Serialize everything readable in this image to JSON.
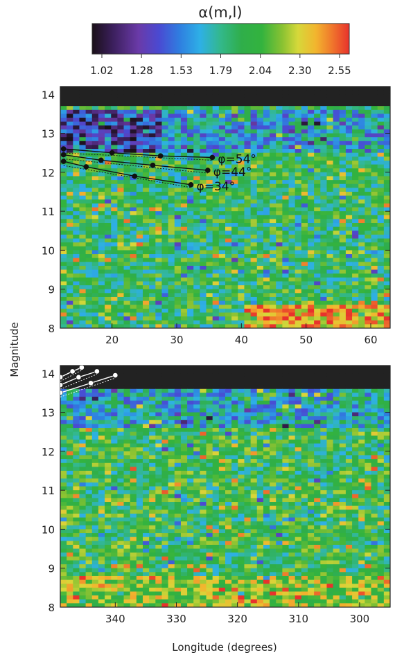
{
  "colorbar": {
    "title": "α(m,l)",
    "ticks": [
      "1.02",
      "1.28",
      "1.53",
      "1.79",
      "2.04",
      "2.30",
      "2.55"
    ],
    "range": [
      1.02,
      2.55
    ]
  },
  "colors": {
    "palette": [
      "#1a1018",
      "#3b1f5c",
      "#6a3aa8",
      "#4a4ad2",
      "#2f7ee0",
      "#2eb0e6",
      "#33b88a",
      "#2fae4a",
      "#33b33e",
      "#8ac232",
      "#d6d83a",
      "#f2b52e",
      "#f07a2c",
      "#e8322c"
    ],
    "over_range": "#222222",
    "track_line": "#111111",
    "bottom_track_line": "#ffffff"
  },
  "ylabel": "Magnitude",
  "xlabel": "Longitude (degrees)",
  "chart_data": [
    {
      "type": "heatmap",
      "panel": "top",
      "xlim": [
        12,
        63
      ],
      "ylim": [
        8,
        14.2
      ],
      "x_ticks": [
        "20",
        "30",
        "40",
        "50",
        "60"
      ],
      "x_tick_values": [
        20,
        30,
        40,
        50,
        60
      ],
      "y_ticks": [
        "8",
        "9",
        "10",
        "11",
        "12",
        "13",
        "14"
      ],
      "y_tick_values": [
        8,
        9,
        10,
        11,
        12,
        13,
        14
      ],
      "regions": [
        {
          "mag_range": [
            13.75,
            14.2
          ],
          "lon_range": [
            12,
            63
          ],
          "value": "above 2.55 / no data (black)"
        },
        {
          "mag_range": [
            12.3,
            13.6
          ],
          "lon_range": [
            12,
            28
          ],
          "value": 1.3
        },
        {
          "mag_range": [
            11.6,
            12.3
          ],
          "lon_range": [
            12,
            30
          ],
          "value": 2.25
        },
        {
          "mag_range": [
            12.5,
            13.6
          ],
          "lon_range": [
            28,
            63
          ],
          "value": 1.6
        },
        {
          "mag_range": [
            8,
            12.5
          ],
          "lon_range": [
            12,
            63
          ],
          "value": 1.85
        },
        {
          "mag_range": [
            8,
            8.6
          ],
          "lon_range": [
            40,
            63
          ],
          "value": 2.3
        }
      ],
      "tracks": [
        {
          "label": "φ=54°",
          "points": [
            [
              12.5,
              12.6
            ],
            [
              20,
              12.5
            ],
            [
              27.5,
              12.42
            ],
            [
              35.5,
              12.38
            ]
          ]
        },
        {
          "label": "φ=44°",
          "points": [
            [
              12.5,
              12.45
            ],
            [
              18.3,
              12.31
            ],
            [
              26.3,
              12.18
            ],
            [
              34.8,
              12.05
            ]
          ]
        },
        {
          "label": "φ=34°",
          "points": [
            [
              12.5,
              12.28
            ],
            [
              16,
              12.14
            ],
            [
              23.5,
              11.9
            ],
            [
              32.2,
              11.68
            ]
          ]
        }
      ]
    },
    {
      "type": "heatmap",
      "panel": "bottom",
      "xlim": [
        349,
        295
      ],
      "ylim": [
        8,
        14.2
      ],
      "x_ticks": [
        "340",
        "330",
        "320",
        "310",
        "300"
      ],
      "x_tick_values": [
        340,
        330,
        320,
        310,
        300
      ],
      "y_ticks": [
        "8",
        "9",
        "10",
        "11",
        "12",
        "13",
        "14"
      ],
      "y_tick_values": [
        8,
        9,
        10,
        11,
        12,
        13,
        14
      ],
      "regions": [
        {
          "mag_range": [
            13.6,
            14.2
          ],
          "lon_range": [
            349,
            295
          ],
          "value": "above 2.55 / no data (black)"
        },
        {
          "mag_range": [
            12.6,
            13.6
          ],
          "lon_range": [
            349,
            295
          ],
          "value": 1.65
        },
        {
          "mag_range": [
            8,
            12.6
          ],
          "lon_range": [
            349,
            295
          ],
          "value": 1.88
        },
        {
          "mag_range": [
            8,
            8.8
          ],
          "lon_range": [
            349,
            295
          ],
          "value": 2.1
        }
      ],
      "tracks": [
        {
          "label": "",
          "points": [
            [
              349,
              13.5
            ],
            [
              344,
              13.75
            ],
            [
              340,
              13.95
            ]
          ]
        },
        {
          "label": "",
          "points": [
            [
              349,
              13.7
            ],
            [
              346,
              13.9
            ],
            [
              343,
              14.05
            ]
          ]
        },
        {
          "label": "",
          "points": [
            [
              349,
              13.9
            ],
            [
              347,
              14.05
            ],
            [
              345.5,
              14.15
            ]
          ]
        }
      ]
    }
  ]
}
